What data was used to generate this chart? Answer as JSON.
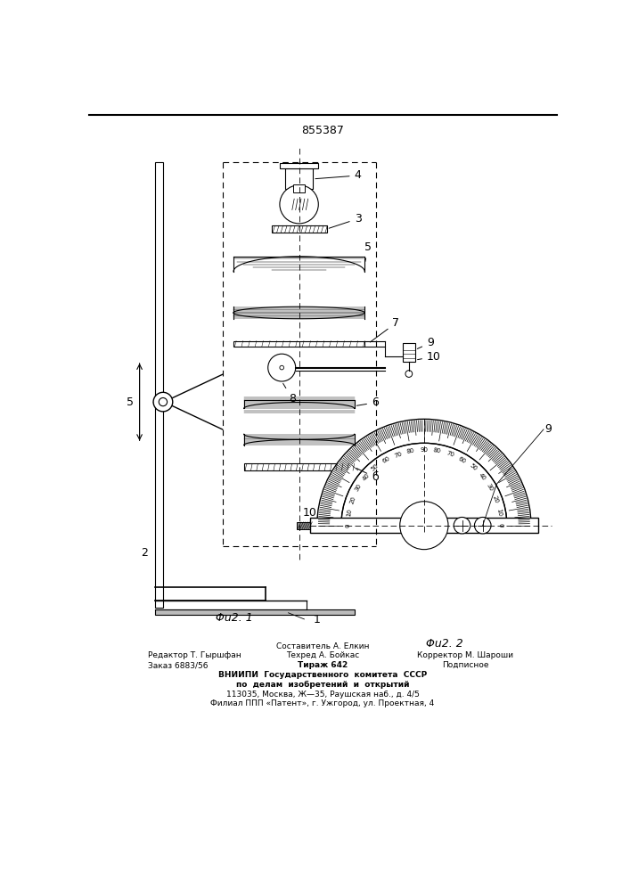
{
  "patent_number": "855387",
  "fig1_label": "Φu2. 1",
  "fig2_label": "Φu2. 2",
  "editor": "Редактор Т. Гыршфан",
  "order": "Заказ 6883/56",
  "compiler": "Составитель А. Елкин",
  "techred": "Техред А. Бойкас",
  "tirazh": "Тираж 642",
  "podpisnoe": "Подписное",
  "corrector": "Корректор М. Шароши",
  "vnipi_line1": "ВНИИПИ  Государственного  комитета  СССР",
  "vnipi_line2": "по  делам  изобретений  и  открытий",
  "vnipi_line3": "113035, Москва, Ж—35, Раушская наб., д. 4/5",
  "vnipi_line4": "Филиал ППП «Патент», г. Ужгород, ул. Проектная, 4",
  "bg_color": "#ffffff",
  "line_color": "#000000"
}
